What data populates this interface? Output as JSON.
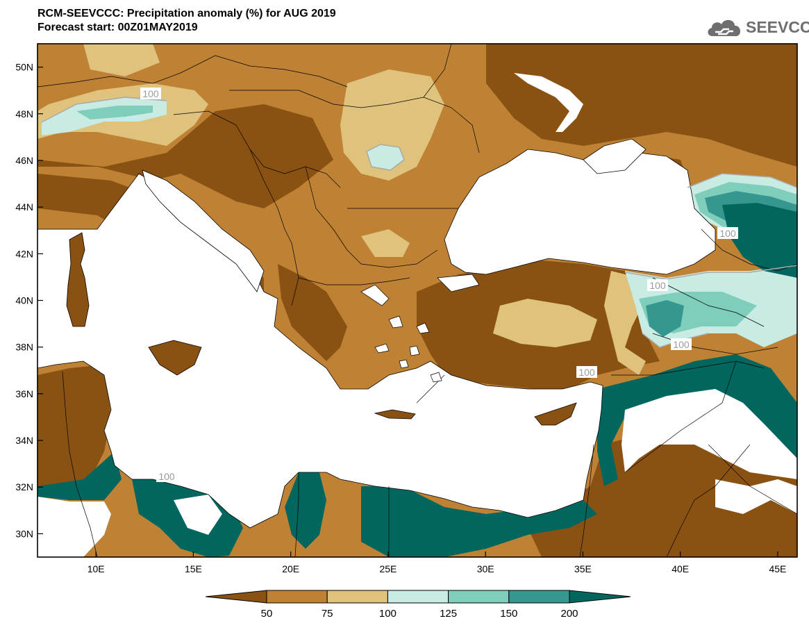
{
  "header": {
    "title": "RCM-SEEVCCC: Precipitation anomaly (%) for AUG 2019",
    "subtitle": "Forecast start: 00Z01MAY2019"
  },
  "logo": {
    "text": "SEEVCCC",
    "icon": "cloud-icon"
  },
  "map": {
    "lon_range": [
      7,
      46
    ],
    "lat_range": [
      29,
      51
    ],
    "lon_ticks": [
      "10E",
      "15E",
      "20E",
      "25E",
      "30E",
      "35E",
      "40E",
      "45E"
    ],
    "lat_ticks": [
      "50N",
      "48N",
      "46N",
      "44N",
      "42N",
      "40N",
      "38N",
      "36N",
      "34N",
      "32N",
      "30N"
    ],
    "contour_labels": [
      "100",
      "100",
      "100",
      "100",
      "100",
      "100"
    ]
  },
  "legend": {
    "colors": [
      "#8a5212",
      "#bf8234",
      "#dfc27c",
      "#c8ece4",
      "#7fcdbb",
      "#35978f",
      "#01665e"
    ],
    "labels": [
      "50",
      "75",
      "100",
      "125",
      "150",
      "200"
    ]
  }
}
